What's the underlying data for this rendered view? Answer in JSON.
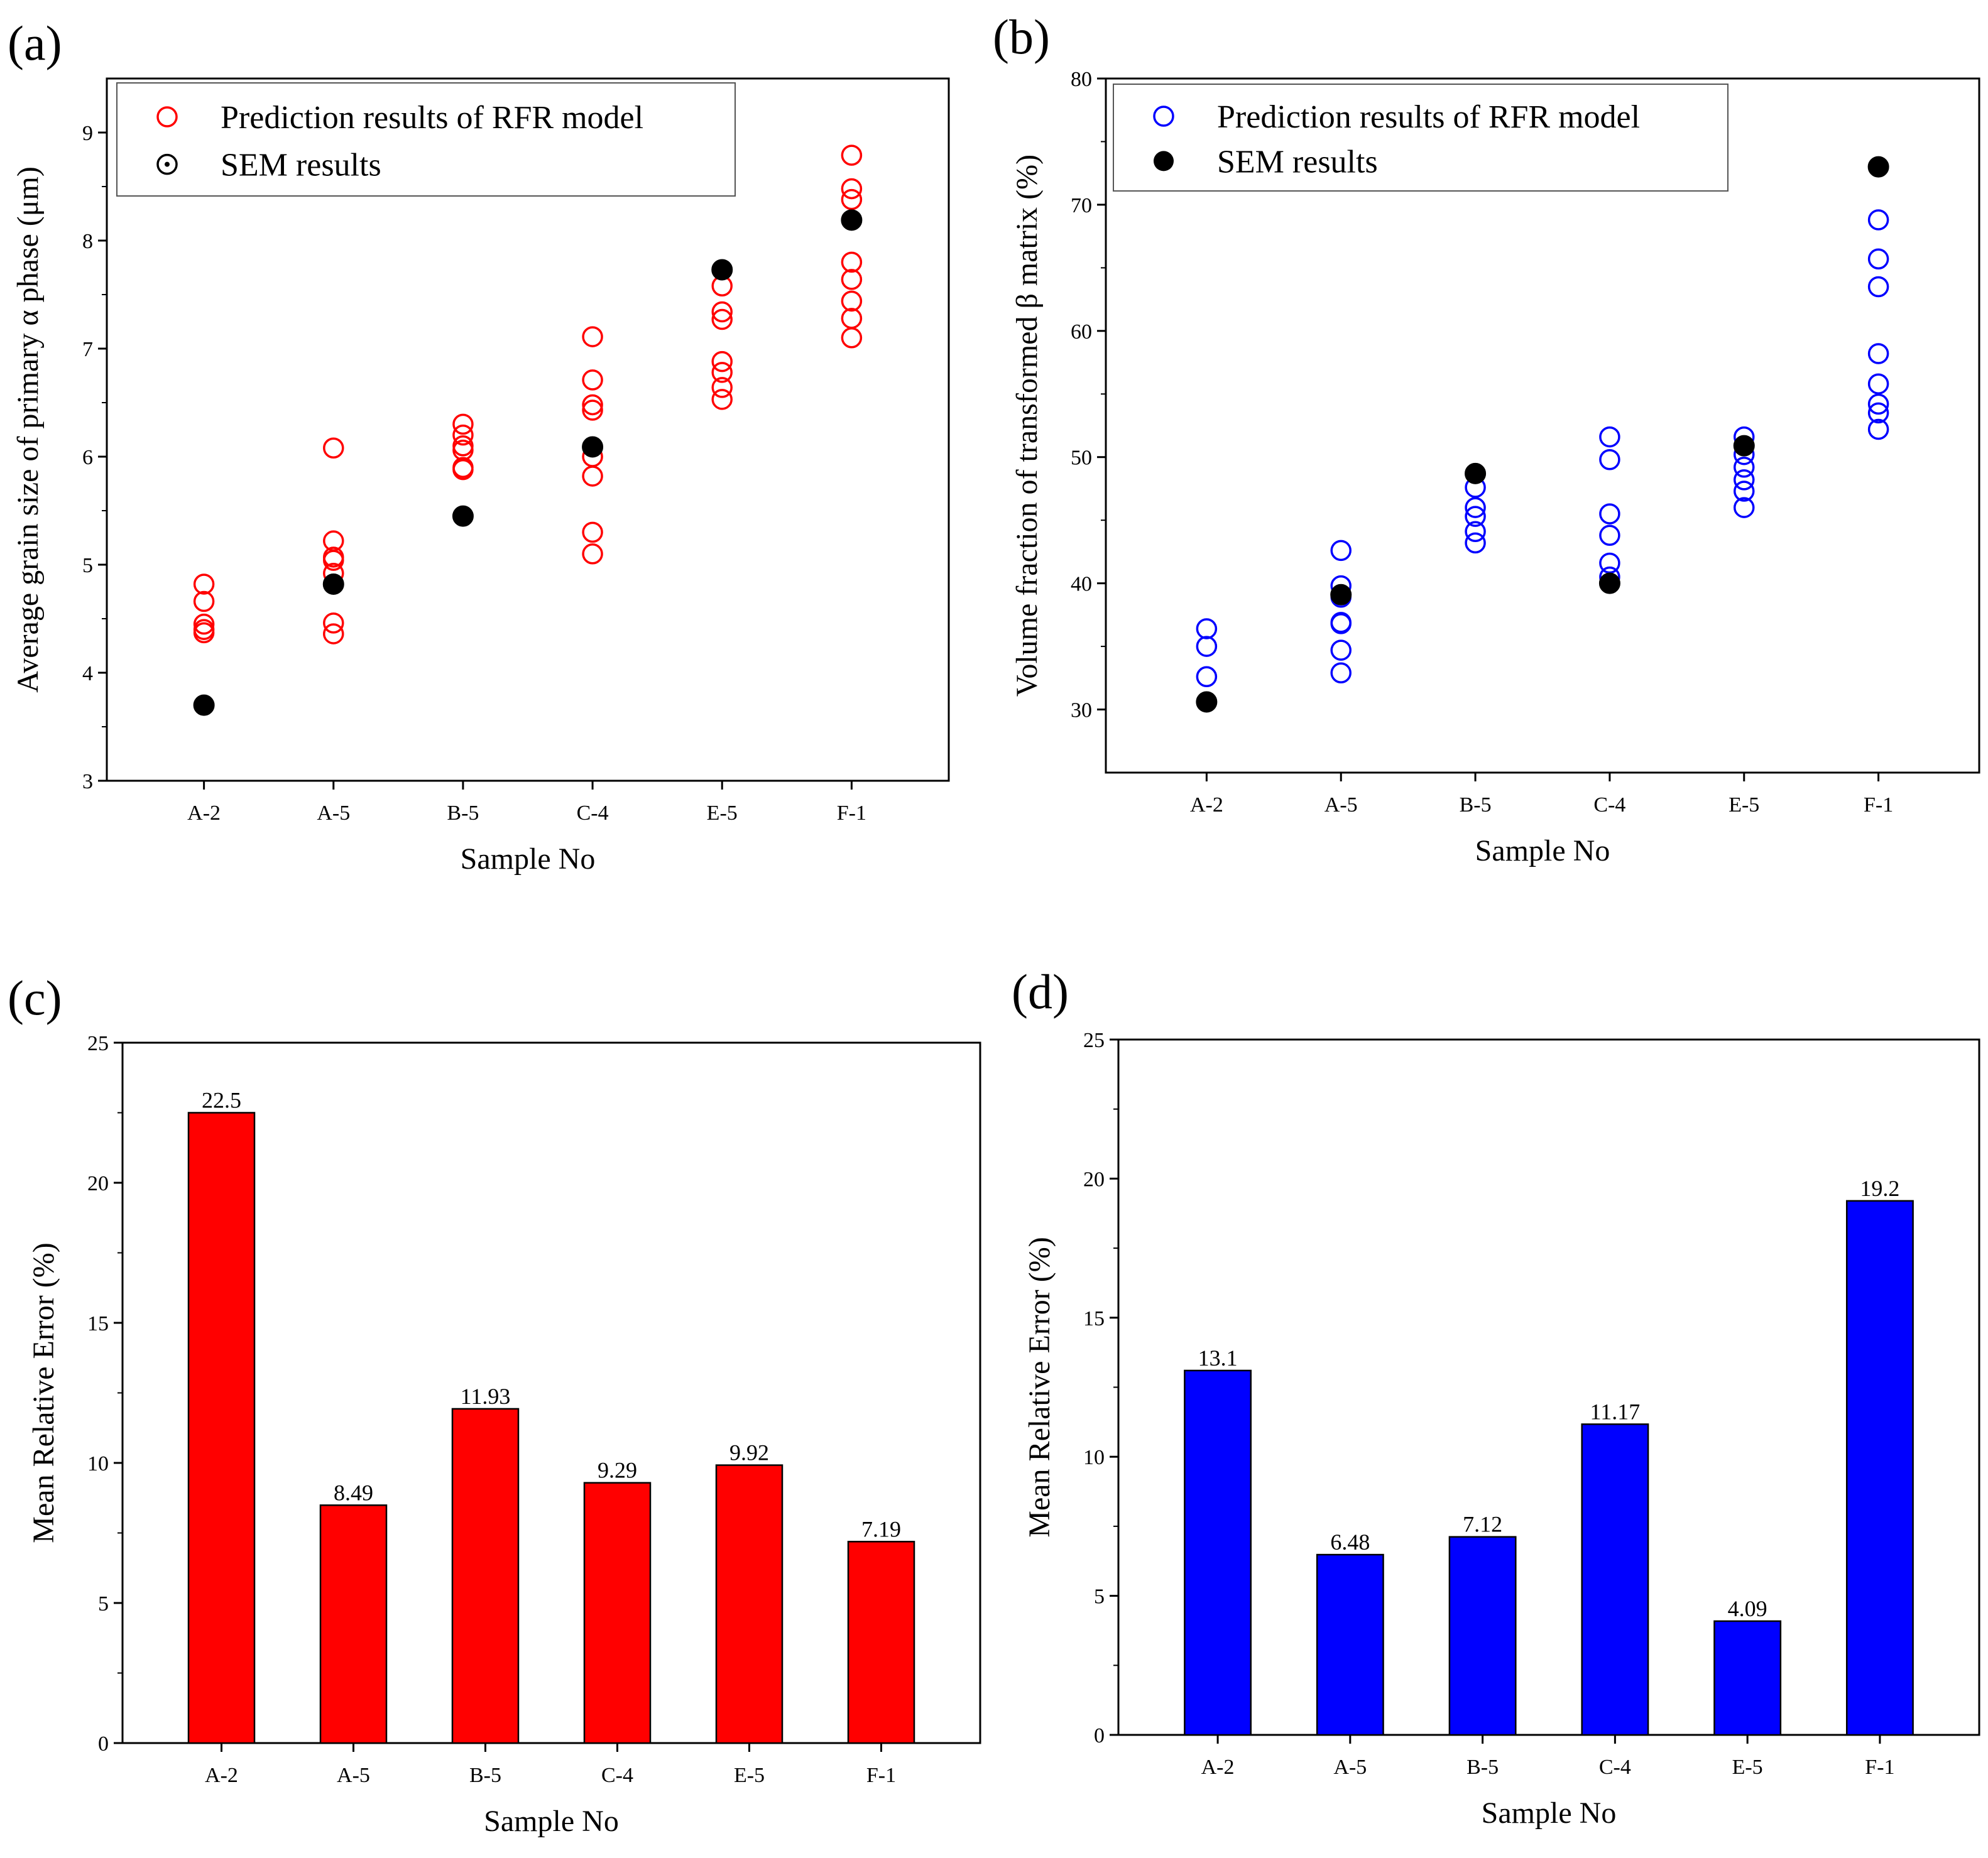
{
  "chart_data": [
    {
      "panel": "(a)",
      "type": "scatter",
      "xlabel": "Sample No",
      "ylabel": "Average grain size of primary α phase (μm)",
      "ylim": [
        3,
        9.5
      ],
      "yticks": [
        3,
        4,
        5,
        6,
        7,
        8,
        9
      ],
      "categories": [
        "A-2",
        "A-5",
        "B-5",
        "C-4",
        "E-5",
        "F-1"
      ],
      "legend": [
        "Prediction results of RFR model",
        "SEM results"
      ],
      "legend_position": "top-left",
      "colors": {
        "prediction": "#ff0000",
        "sem": "#000000"
      },
      "series": [
        {
          "name": "Prediction results of RFR model",
          "marker": "open-circle",
          "values": [
            [
              4.82,
              4.66,
              4.45,
              4.4,
              4.37
            ],
            [
              6.08,
              5.22,
              5.07,
              5.04,
              4.92,
              4.46,
              4.36
            ],
            [
              6.3,
              6.2,
              6.1,
              6.06,
              5.9,
              5.88
            ],
            [
              7.11,
              6.71,
              6.48,
              6.43,
              6.0,
              5.82,
              5.3,
              5.1
            ],
            [
              7.58,
              7.34,
              7.27,
              6.88,
              6.78,
              6.64,
              6.53
            ],
            [
              8.79,
              8.48,
              8.38,
              7.8,
              7.64,
              7.44,
              7.28,
              7.1
            ]
          ]
        },
        {
          "name": "SEM results",
          "marker": "filled-circle",
          "values": [
            3.7,
            4.82,
            5.45,
            6.09,
            7.73,
            8.19
          ]
        }
      ]
    },
    {
      "panel": "(b)",
      "type": "scatter",
      "xlabel": "Sample No",
      "ylabel": "Volume fraction of transformed β matrix (%)",
      "ylim": [
        25,
        80
      ],
      "yticks": [
        30,
        40,
        50,
        60,
        70,
        80
      ],
      "categories": [
        "A-2",
        "A-5",
        "B-5",
        "C-4",
        "E-5",
        "F-1"
      ],
      "legend": [
        "Prediction results of RFR model",
        "SEM results"
      ],
      "legend_position": "top-left",
      "colors": {
        "prediction": "#0000ff",
        "sem": "#000000"
      },
      "series": [
        {
          "name": "Prediction results of RFR model",
          "marker": "open-circle",
          "values": [
            [
              36.4,
              35.0,
              32.6
            ],
            [
              42.6,
              39.8,
              38.9,
              36.9,
              36.8,
              34.7,
              32.9
            ],
            [
              47.6,
              46.0,
              45.3,
              44.1,
              43.2
            ],
            [
              51.6,
              49.8,
              45.5,
              43.8,
              41.6,
              40.5
            ],
            [
              51.6,
              50.2,
              49.2,
              48.2,
              47.3,
              46.0
            ],
            [
              68.8,
              65.7,
              63.5,
              58.2,
              55.8,
              54.2,
              53.5,
              52.2
            ]
          ]
        },
        {
          "name": "SEM results",
          "marker": "filled-circle",
          "values": [
            30.6,
            39.1,
            48.7,
            40.0,
            50.9,
            73.0
          ]
        }
      ]
    },
    {
      "panel": "(c)",
      "type": "bar",
      "xlabel": "Sample No",
      "ylabel": "Mean Relative Error (%)",
      "ylim": [
        0,
        25
      ],
      "yticks": [
        0,
        5,
        10,
        15,
        20,
        25
      ],
      "categories": [
        "A-2",
        "A-5",
        "B-5",
        "C-4",
        "E-5",
        "F-1"
      ],
      "values": [
        22.5,
        8.49,
        11.93,
        9.29,
        9.92,
        7.19
      ],
      "value_labels": [
        "22.5",
        "8.49",
        "11.93",
        "9.29",
        "9.92",
        "7.19"
      ],
      "color": "#ff0000"
    },
    {
      "panel": "(d)",
      "type": "bar",
      "xlabel": "Sample No",
      "ylabel": "Mean Relative Error (%)",
      "ylim": [
        0,
        25
      ],
      "yticks": [
        0,
        5,
        10,
        15,
        20,
        25
      ],
      "categories": [
        "A-2",
        "A-5",
        "B-5",
        "C-4",
        "E-5",
        "F-1"
      ],
      "values": [
        13.1,
        6.48,
        7.12,
        11.17,
        4.09,
        19.2
      ],
      "value_labels": [
        "13.1",
        "6.48",
        "7.12",
        "11.17",
        "4.09",
        "19.2"
      ],
      "color": "#0000ff"
    }
  ]
}
